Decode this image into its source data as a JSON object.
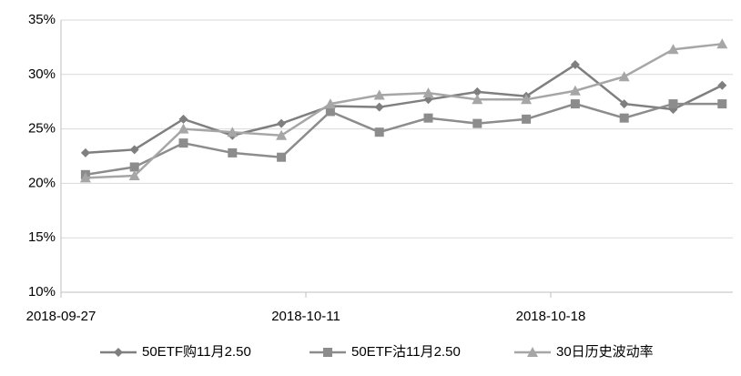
{
  "chart_data": {
    "type": "line",
    "categories": [
      "2018-09-27",
      null,
      null,
      null,
      null,
      "2018-10-11",
      null,
      null,
      null,
      null,
      "2018-10-18",
      null,
      null,
      null
    ],
    "series": [
      {
        "name": "50ETF购11月2.50",
        "color": "#7f7f7f",
        "marker": "diamond",
        "values": [
          22.8,
          23.1,
          25.9,
          24.4,
          25.5,
          27.1,
          27.0,
          27.7,
          28.4,
          28.0,
          30.9,
          27.3,
          26.8,
          29.0
        ]
      },
      {
        "name": "50ETF沽11月2.50",
        "color": "#8c8c8c",
        "marker": "square",
        "values": [
          20.8,
          21.5,
          23.7,
          22.8,
          22.4,
          26.6,
          24.7,
          26.0,
          25.5,
          25.9,
          27.3,
          26.0,
          27.3,
          27.3
        ]
      },
      {
        "name": "30日历史波动率",
        "color": "#a6a6a6",
        "marker": "triangle",
        "values": [
          20.5,
          20.7,
          25.0,
          24.7,
          24.4,
          27.3,
          28.1,
          28.3,
          27.7,
          27.7,
          28.5,
          29.8,
          32.3,
          32.8
        ]
      }
    ],
    "ylim": [
      10,
      35
    ],
    "yticks": [
      {
        "value": 10,
        "label": "10%"
      },
      {
        "value": 15,
        "label": "15%"
      },
      {
        "value": 20,
        "label": "20%"
      },
      {
        "value": 25,
        "label": "25%"
      },
      {
        "value": 30,
        "label": "30%"
      },
      {
        "value": 35,
        "label": "35%"
      }
    ],
    "grid": true,
    "legend": "bottom"
  }
}
